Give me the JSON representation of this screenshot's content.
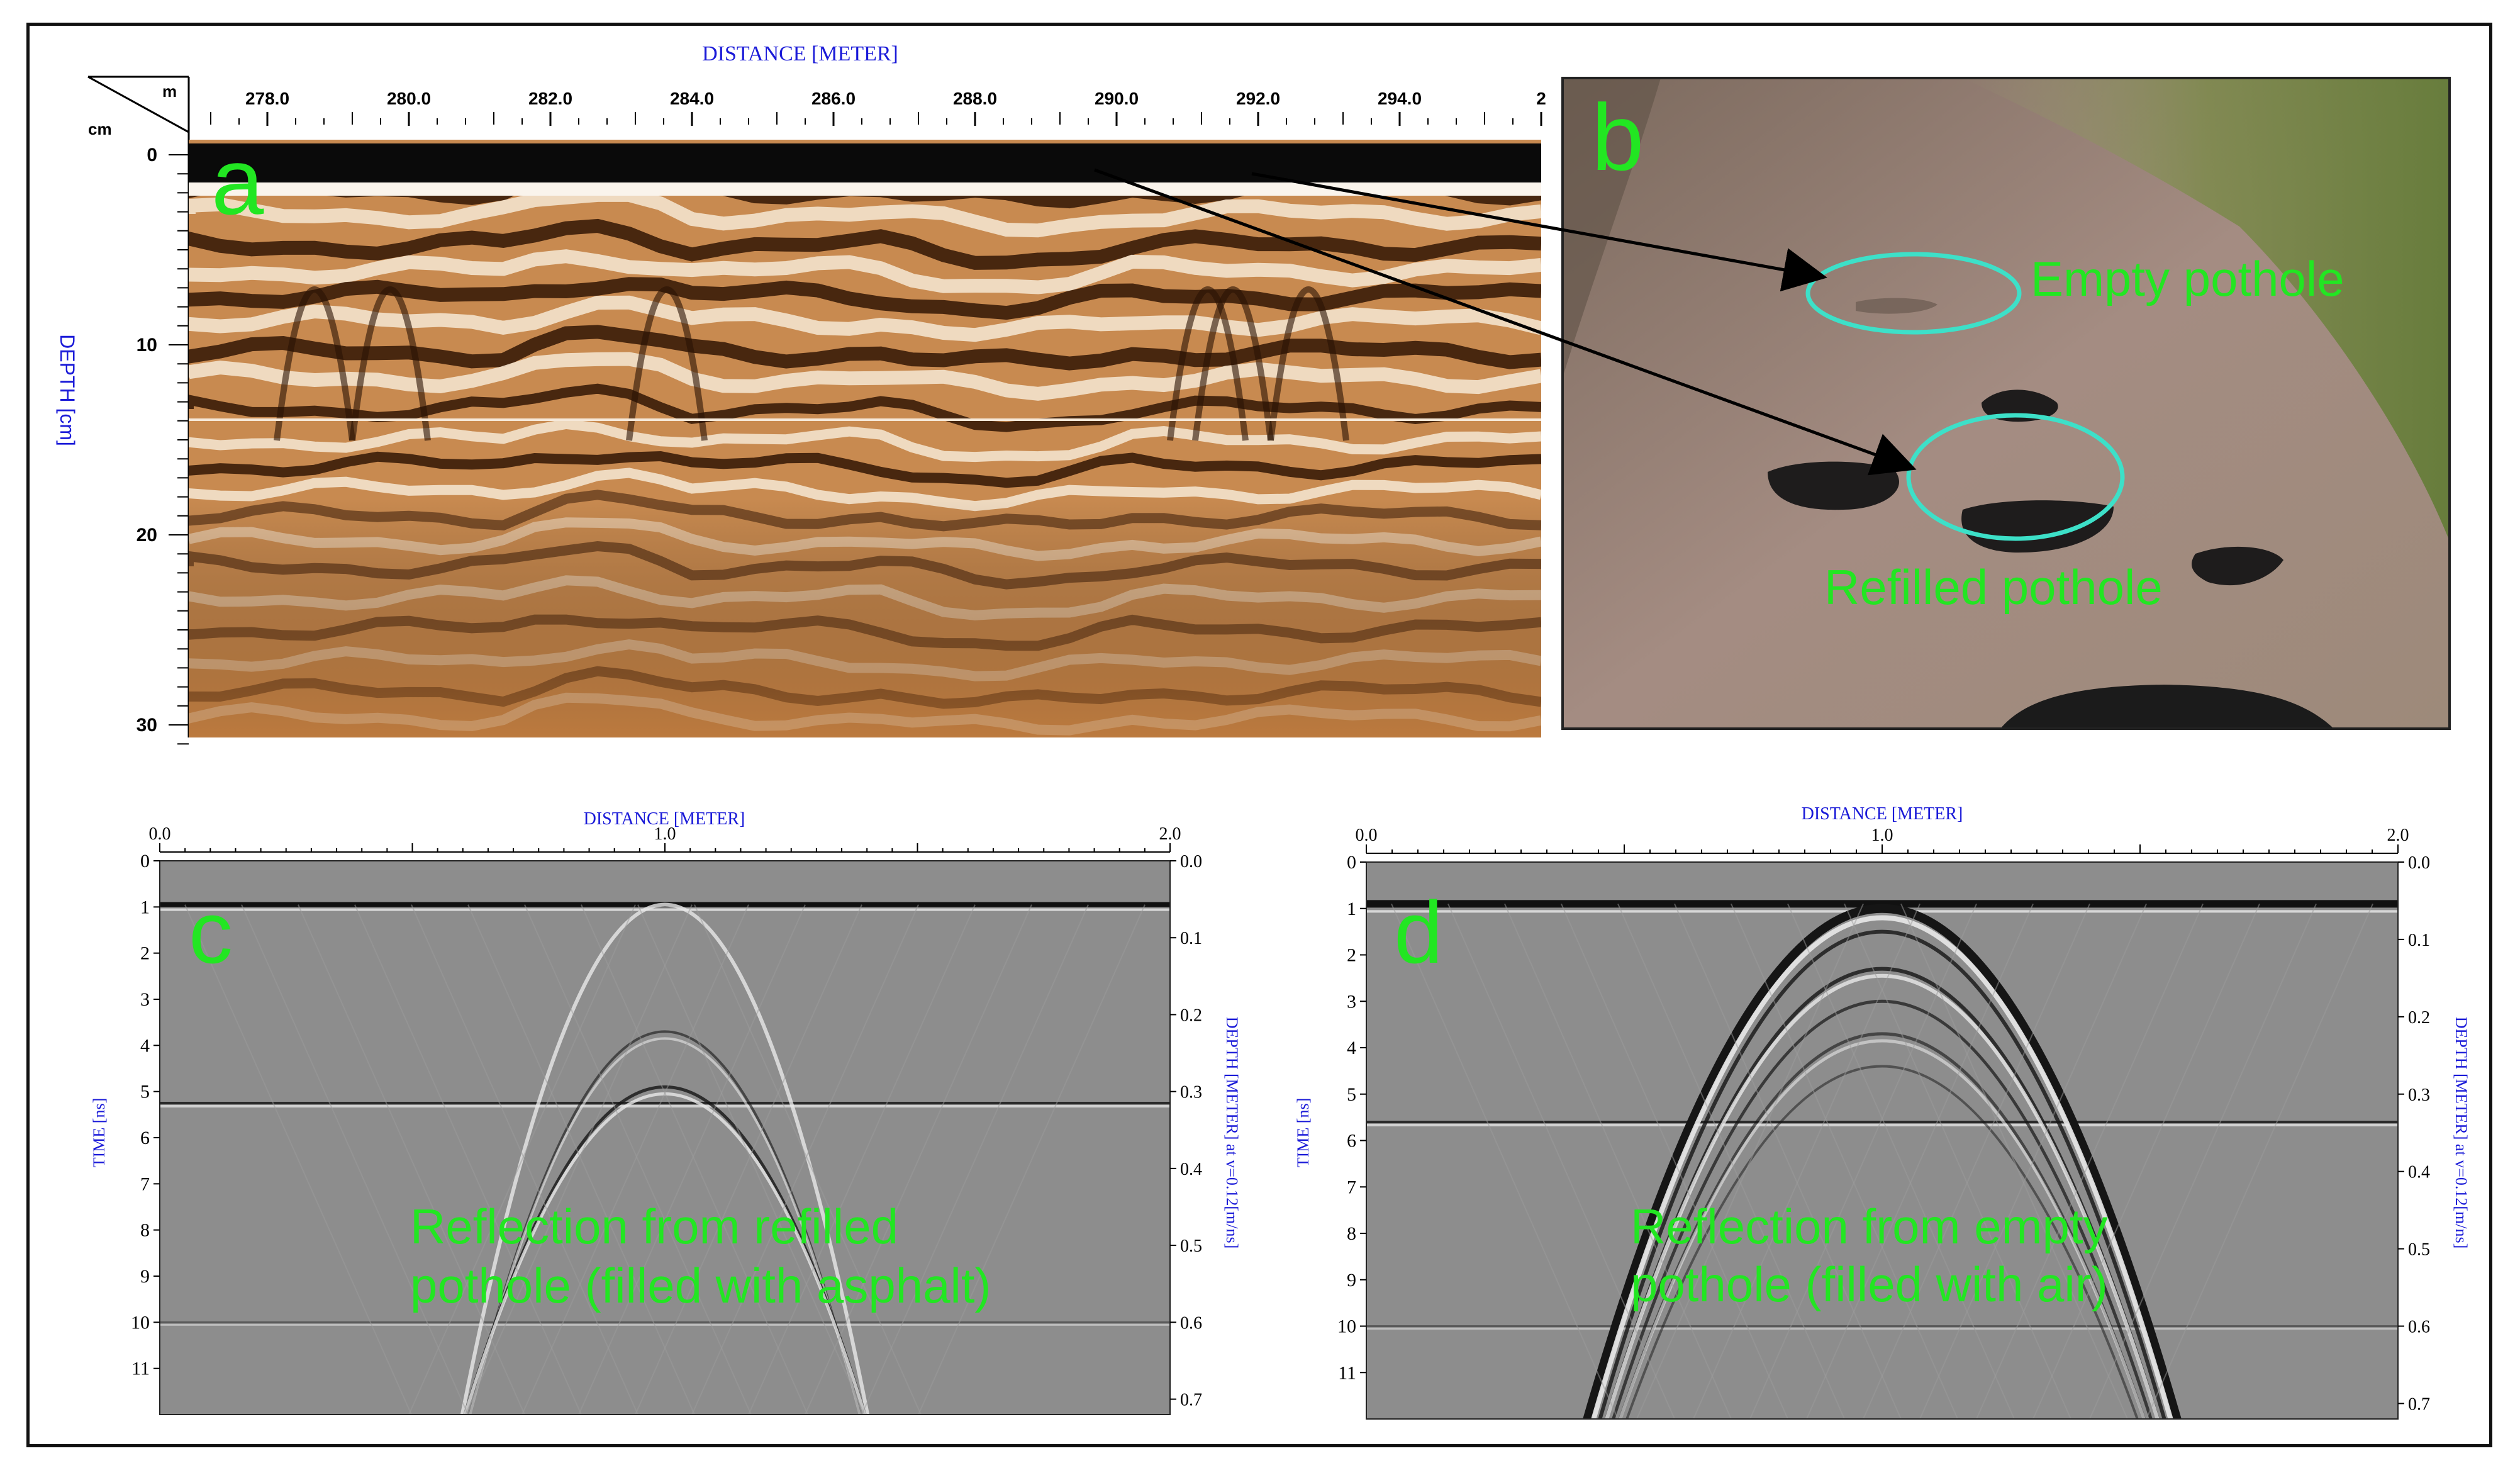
{
  "panel_a": {
    "letter": "a",
    "title": "DISTANCE [METER]",
    "unit_top": "m",
    "unit_left": "cm",
    "ylabel": "DEPTH [cm]",
    "x_ticks": [
      "278.0",
      "280.0",
      "282.0",
      "284.0",
      "286.0",
      "288.0",
      "290.0",
      "292.0",
      "294.0",
      "2"
    ],
    "y_ticks": [
      "0",
      "10",
      "20",
      "30"
    ]
  },
  "panel_b": {
    "letter": "b",
    "empty_label": "Empty pothole",
    "refilled_label": "Refilled pothole"
  },
  "panel_c": {
    "letter": "c",
    "title": "DISTANCE [METER]",
    "x_ticks": [
      "0.0",
      "1.0",
      "2.0"
    ],
    "time_ticks": [
      "0",
      "1",
      "2",
      "3",
      "4",
      "5",
      "6",
      "7",
      "8",
      "9",
      "10",
      "11"
    ],
    "depth_ticks": [
      "0.0",
      "0.1",
      "0.2",
      "0.3",
      "0.4",
      "0.5",
      "0.6",
      "0.7"
    ],
    "ylabel_left": "TIME [ns]",
    "ylabel_right": "DEPTH [METER] at v=0.12[m/ns]",
    "annotation_line1": "Reflection from refilled",
    "annotation_line2": "pothole (filled with asphalt)"
  },
  "panel_d": {
    "letter": "d",
    "title": "DISTANCE [METER]",
    "x_ticks": [
      "0.0",
      "1.0",
      "2.0"
    ],
    "time_ticks": [
      "0",
      "1",
      "2",
      "3",
      "4",
      "5",
      "6",
      "7",
      "8",
      "9",
      "10",
      "11"
    ],
    "depth_ticks": [
      "0.0",
      "0.1",
      "0.2",
      "0.3",
      "0.4",
      "0.5",
      "0.6",
      "0.7"
    ],
    "ylabel_left": "TIME [ns]",
    "ylabel_right": "DEPTH [METER] at v=0.12[m/ns]",
    "annotation_line1": "Reflection from empty",
    "annotation_line2": "pothole (filled with air)"
  },
  "colors": {
    "label_green": "#22e622",
    "axis_blue": "#1a1ad8",
    "ellipse_cyan": "#3de0c8"
  }
}
